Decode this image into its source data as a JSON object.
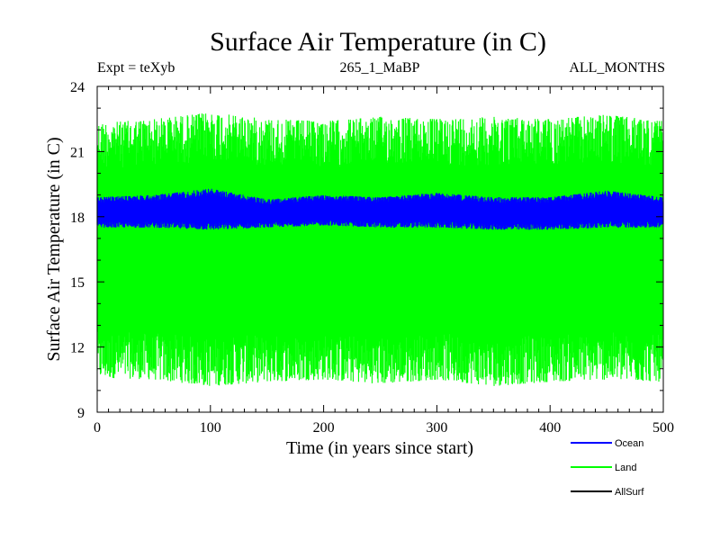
{
  "chart_data": {
    "type": "line",
    "title": "Surface Air Temperature (in C)",
    "top_left": "Expt = teXyb",
    "top_center": "265_1_MaBP",
    "top_right": "ALL_MONTHS",
    "xlabel": "Time (in years since start)",
    "ylabel": "Surface Air Temperature (in C)",
    "xlim": [
      0,
      500
    ],
    "ylim": [
      9,
      24
    ],
    "xticks": [
      0,
      100,
      200,
      300,
      400,
      500
    ],
    "yticks": [
      9,
      12,
      15,
      18,
      21,
      24
    ],
    "grid": false,
    "legend_position": "bottom-right, below plot",
    "series": [
      {
        "name": "Ocean",
        "color": "#0000ff",
        "mean": 18.3,
        "band_low": [
          17.5,
          17.5,
          17.4,
          17.5,
          17.6,
          17.5,
          17.5,
          17.4,
          17.4,
          17.5,
          17.5
        ],
        "band_high": [
          18.9,
          19.0,
          19.3,
          18.8,
          19.0,
          18.9,
          19.1,
          18.9,
          18.9,
          19.2,
          18.9
        ],
        "x": [
          0,
          50,
          100,
          150,
          200,
          250,
          300,
          350,
          400,
          450,
          500
        ]
      },
      {
        "name": "Land",
        "color": "#00ff00",
        "mean": 16.3,
        "band_low": [
          10.6,
          10.5,
          10.2,
          10.4,
          10.5,
          10.3,
          10.5,
          10.2,
          10.4,
          10.5,
          10.4
        ],
        "band_high": [
          22.3,
          22.5,
          22.8,
          22.5,
          22.4,
          22.6,
          22.5,
          22.6,
          22.5,
          22.7,
          22.4
        ],
        "x": [
          0,
          50,
          100,
          150,
          200,
          250,
          300,
          350,
          400,
          450,
          500
        ]
      },
      {
        "name": "AllSurf",
        "color": "#000000",
        "x": [],
        "values": []
      }
    ]
  }
}
